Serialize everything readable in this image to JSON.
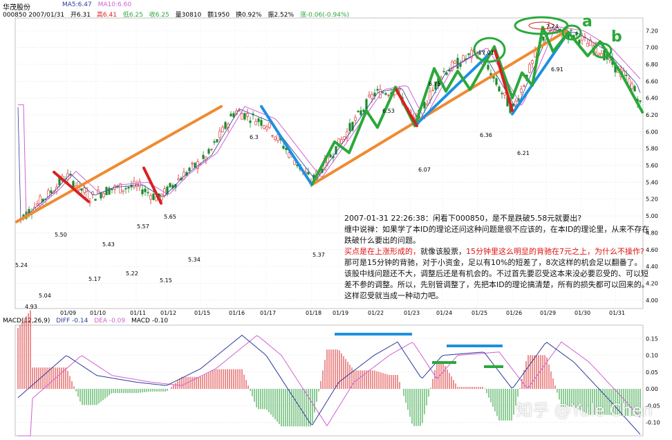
{
  "header": {
    "name": "华茂股份",
    "row1": [
      "MA5:6.47",
      "MA10:6.60"
    ],
    "row2": [
      "000850 2007/01/31",
      "开6.31",
      "高6.41",
      "低6.25",
      "收6.25",
      "量30810",
      "额1950",
      "换0.92%",
      "振2.52%",
      "涨-0.06(-0.94%)"
    ],
    "macd_label": "MACD(12,26,9)",
    "macd_values": [
      "DIFF -0.14",
      "DEA -0.09",
      "MACD -0.10"
    ]
  },
  "colors": {
    "orange": "#f08a30",
    "blue": "#1e90e0",
    "green": "#2aa83a",
    "red": "#d82020",
    "ma5": "#2a3a9a",
    "ma10": "#d060d0",
    "diff": "#2a3a9a",
    "dea": "#d060d0"
  },
  "chart_data": [
    {
      "type": "candlestick",
      "title": "",
      "x_ticks": [
        "01/09",
        "01/10",
        "01/11",
        "01/12",
        "01/15",
        "01/16",
        "01/17",
        "01/18",
        "01/19",
        "01/22",
        "01/23",
        "01/24",
        "01/25",
        "01/26",
        "01/29",
        "01/30",
        "01/31"
      ],
      "y_ticks": [
        4.0,
        4.2,
        4.4,
        4.6,
        4.8,
        5.0,
        5.2,
        5.4,
        5.6,
        5.8,
        6.0,
        6.2,
        6.4,
        6.6,
        6.8,
        7.0,
        7.2
      ],
      "ylim": [
        3.9,
        7.35
      ],
      "price_labels": [
        {
          "label": "5.24",
          "value": 5.24
        },
        {
          "label": "4.93",
          "value": 4.93
        },
        {
          "label": "5.04",
          "value": 5.04
        },
        {
          "label": "5.50",
          "value": 5.5
        },
        {
          "label": "5.17",
          "value": 5.17
        },
        {
          "label": "5.43",
          "value": 5.43
        },
        {
          "label": "5.22",
          "value": 5.22
        },
        {
          "label": "5.57",
          "value": 5.57
        },
        {
          "label": "5.15",
          "value": 5.15
        },
        {
          "label": "5.65",
          "value": 5.65
        },
        {
          "label": "5.34",
          "value": 5.34
        },
        {
          "label": "6.3",
          "value": 6.3
        },
        {
          "label": "5.37",
          "value": 5.37
        },
        {
          "label": "6.53",
          "value": 6.53
        },
        {
          "label": "6.07",
          "value": 6.07
        },
        {
          "label": "6.75",
          "value": 6.75
        },
        {
          "label": "7.01",
          "value": 7.01
        },
        {
          "label": "6.36",
          "value": 6.36
        },
        {
          "label": "6.21",
          "value": 6.21
        },
        {
          "label": "7.24",
          "value": 7.24
        },
        {
          "label": "6.91",
          "value": 6.91
        }
      ],
      "orange_trendlines": [
        [
          {
            "x": "01/08",
            "y": 4.93
          },
          {
            "x": "01/16",
            "y": 6.3
          }
        ],
        [
          {
            "x": "01/18",
            "y": 5.37
          },
          {
            "x": "01/30",
            "y": 7.2
          }
        ]
      ],
      "blue_segments": [
        [
          {
            "x": "01/16",
            "y": 6.3
          },
          {
            "x": "01/18",
            "y": 5.37
          }
        ],
        [
          {
            "x": "01/23",
            "y": 6.07
          },
          {
            "x": "01/25",
            "y": 7.01
          }
        ],
        [
          {
            "x": "01/26",
            "y": 6.21
          },
          {
            "x": "01/30",
            "y": 7.18
          }
        ]
      ],
      "green_segments": "zigzag 01/18 → 01/29 and 01/29 → 01/31",
      "red_segments": 4,
      "annotations": [
        "a",
        "b"
      ]
    },
    {
      "type": "macd",
      "title": "MACD(12,26,9)",
      "y_ticks": [
        0.15,
        0.1,
        0.05,
        0.0,
        -0.05,
        -0.1
      ],
      "ylim": [
        -0.14,
        0.19
      ],
      "series": [
        {
          "name": "DIFF",
          "value": -0.14
        },
        {
          "name": "DEA",
          "value": -0.09
        },
        {
          "name": "MACD",
          "value": -0.1
        }
      ]
    }
  ],
  "note": {
    "title": "2007-01-31 22:26:38：闲看下000850，是不是跌破5.58元就要出?",
    "p1": "缠中说禅：如果学了本ID的理论还问这种问题是很不应该的，在本ID的理论里，从来不存在跌破什么要出的问题。",
    "p2_red1": "买点是在上涨形成的，",
    "p2_mid": "就像该股票，",
    "p2_red2": "15分钟里这么明显的背驰在7元之上，为什么不操作?",
    "p3": "那可是15分钟的背驰，对于小资金，足以有10%的短差了，8次这样的机会足以翻番了。",
    "p4": "该股中线问题还不大，调整后还是有机会的。不过首先要忍受这本来没必要忍受的、可以短差不参的调整。所以，先别管调整了，先把本ID的理论搞清楚，所有的损失都可以回来的。这样忍受就当成一种动力吧。"
  },
  "watermark": "知乎 @Yule Chen"
}
